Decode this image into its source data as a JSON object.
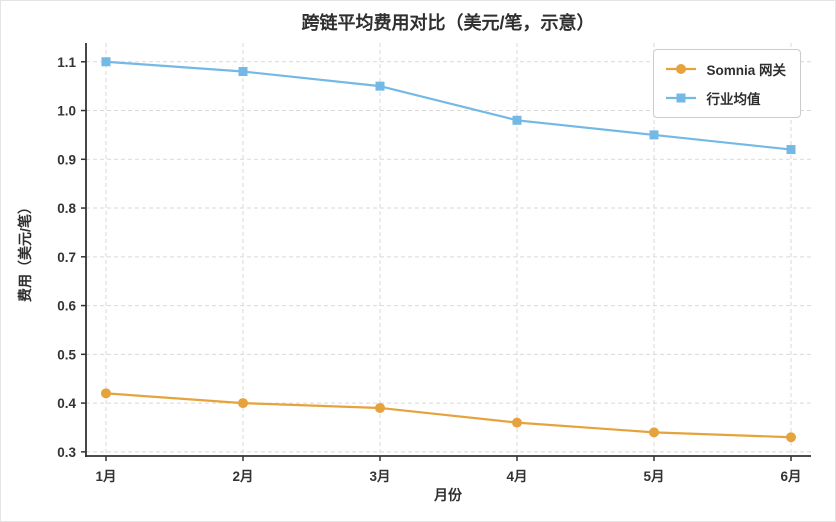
{
  "chart_data": {
    "type": "line",
    "title": "跨链平均费用对比（美元/笔，示意）",
    "xlabel": "月份",
    "ylabel": "费用（美元/笔）",
    "categories": [
      "1月",
      "2月",
      "3月",
      "4月",
      "5月",
      "6月"
    ],
    "series": [
      {
        "name": "Somnia 网关",
        "values": [
          0.42,
          0.4,
          0.39,
          0.36,
          0.34,
          0.33
        ],
        "color": "#E6A23C",
        "marker": "circle"
      },
      {
        "name": "行业均值",
        "values": [
          1.1,
          1.08,
          1.05,
          0.98,
          0.95,
          0.92
        ],
        "color": "#74B9E5",
        "marker": "square"
      }
    ],
    "yticks": [
      0.3,
      0.4,
      0.5,
      0.6,
      0.7,
      0.8,
      0.9,
      1.0,
      1.1
    ],
    "ytick_labels": [
      "0.3",
      "0.4",
      "0.5",
      "0.6",
      "0.7",
      "0.8",
      "0.9",
      "1.0",
      "1.1"
    ],
    "ylim": [
      0.2915,
      1.1385
    ],
    "grid": true,
    "legend_position": "top-right"
  },
  "colors": {
    "somnia_orange": "#E6A23C",
    "industry_blue": "#74B9E5",
    "text": "#2f2f2f",
    "grid": "#d9d9d9",
    "axis": "#333333",
    "background": "#ffffff"
  }
}
